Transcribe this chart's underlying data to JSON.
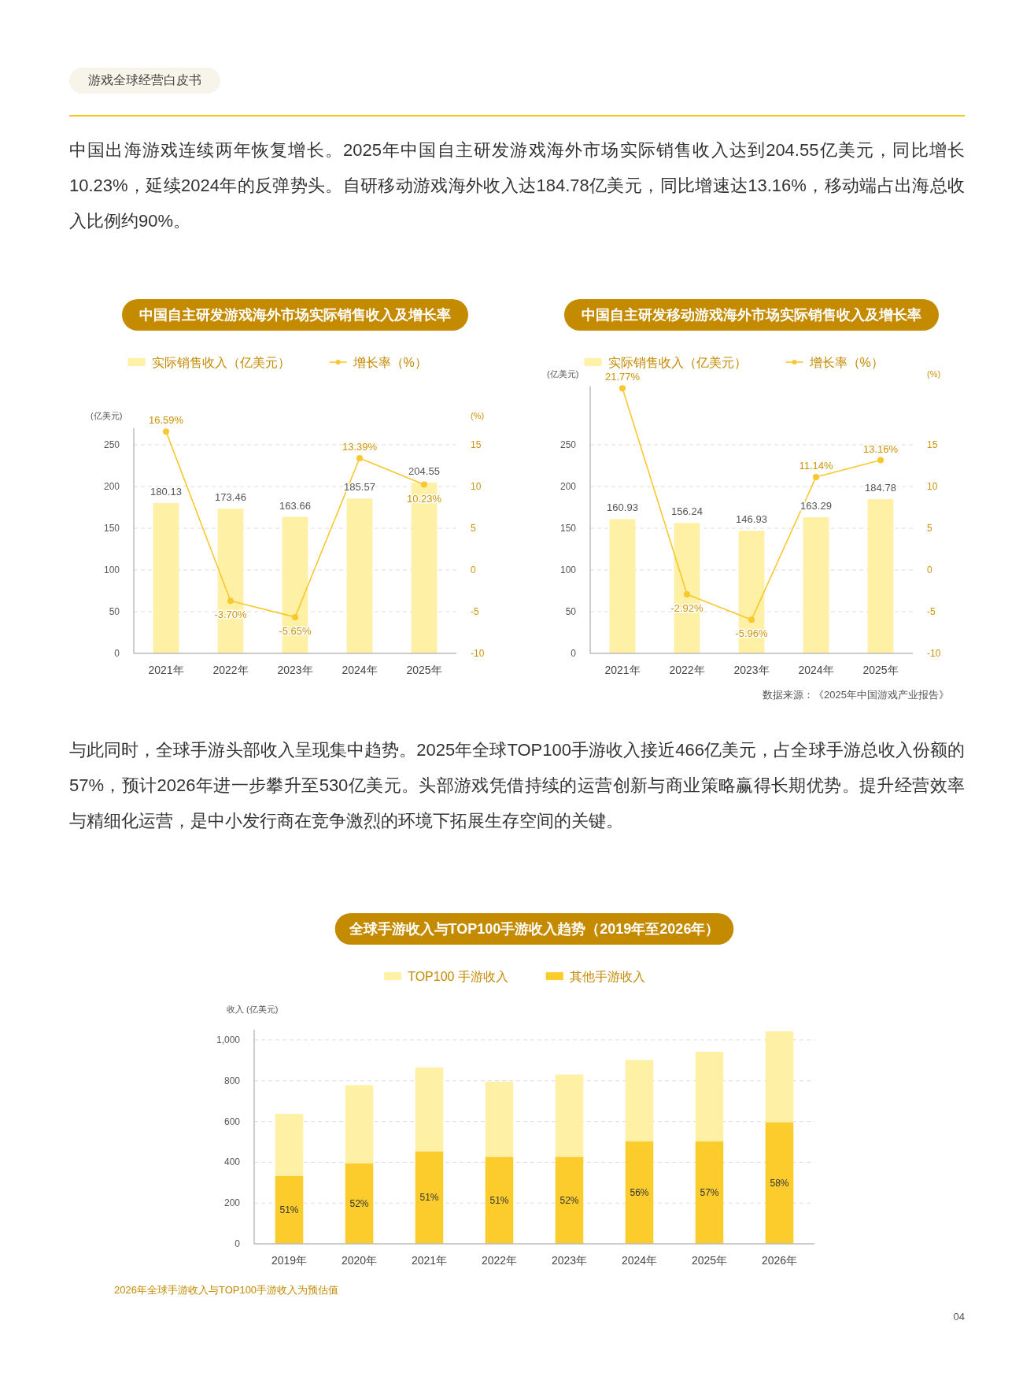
{
  "chart_data": [
    {
      "type": "bar",
      "title": "中国自主研发游戏海外市场实际销售收入及增长率",
      "categories": [
        "2021年",
        "2022年",
        "2023年",
        "2024年",
        "2025年"
      ],
      "series": [
        {
          "name": "实际销售收入（亿美元）",
          "color": "#fef0a5",
          "values": [
            180.13,
            173.46,
            163.66,
            185.57,
            204.55
          ],
          "value_labels": [
            "180.13",
            "173.46",
            "163.66",
            "185.57",
            "204.55"
          ]
        },
        {
          "type": "line",
          "name": "增长率（%）",
          "color": "#f9c72e",
          "axis": "y2",
          "values": [
            16.59,
            -3.7,
            -5.65,
            13.39,
            10.23
          ],
          "value_labels": [
            "16.59%",
            "-3.70%",
            "-5.65%",
            "13.39%",
            "10.23%"
          ]
        }
      ],
      "ylabel": "(亿美元)",
      "y2label": "(%)",
      "ylim": [
        0,
        270
      ],
      "yticks": [
        0,
        50,
        100,
        150,
        200,
        250
      ],
      "y2lim": [
        -10,
        17
      ],
      "y2ticks": [
        -10,
        -5,
        0,
        5,
        10,
        15
      ],
      "grid": "y",
      "legend": "top",
      "marker": "circle",
      "annotations": [
        "游戏全球经营白皮书",
        "中国出海游戏连续两年恢复增长。2025年中国自主研发游戏海外市场实际销售收入达到204.55亿美元，同比增长10.23%，延续2024年的反弹势头。自研移动游戏海外收入达184.78亿美元，同比增速达13.16%，移动端占出海总收入比例约90%。"
      ]
    },
    {
      "type": "bar",
      "title": "中国自主研发移动游戏海外市场实际销售收入及增长率",
      "categories": [
        "2021年",
        "2022年",
        "2023年",
        "2024年",
        "2025年"
      ],
      "series": [
        {
          "name": "实际销售收入（亿美元）",
          "color": "#fef0a5",
          "values": [
            160.93,
            156.24,
            146.93,
            163.29,
            184.78
          ],
          "value_labels": [
            "160.93",
            "156.24",
            "146.93",
            "163.29",
            "184.78"
          ]
        },
        {
          "type": "line",
          "name": "增长率（%）",
          "color": "#f9c72e",
          "axis": "y2",
          "values": [
            21.77,
            -2.92,
            -5.96,
            11.14,
            13.16
          ],
          "value_labels": [
            "21.77%",
            "-2.92%",
            "-5.96%",
            "11.14%",
            "13.16%"
          ]
        }
      ],
      "ylabel": "(亿美元)",
      "y2label": "(%)",
      "ylim": [
        0,
        320
      ],
      "yticks": [
        0,
        50,
        100,
        150,
        200,
        250
      ],
      "y2lim": [
        -10,
        22
      ],
      "y2ticks": [
        -10,
        -5,
        0,
        5,
        10,
        15
      ],
      "grid": "y",
      "legend": "top",
      "marker": "circle",
      "annotations": [
        "数据来源：《2025年中国游戏产业报告》"
      ]
    },
    {
      "type": "bar",
      "title": "全球手游收入与TOP100手游收入趋势（2019年至2026年）",
      "categories": [
        "2019年",
        "2020年",
        "2021年",
        "2022年",
        "2023年",
        "2024年",
        "2025年",
        "2026年"
      ],
      "stacked": true,
      "series": [
        {
          "name": "其他手游收入",
          "color": "#fccc2c",
          "values": [
            332,
            396,
            454,
            427,
            427,
            502,
            502,
            597
          ]
        },
        {
          "name": "TOP100 手游收入",
          "color": "#fef0a5",
          "values": [
            305,
            382,
            411,
            368,
            403,
            400,
            440,
            445
          ]
        }
      ],
      "ylabel": "收入 (亿美元)",
      "ylim": [
        0,
        1050
      ],
      "yticks": [
        0,
        200,
        400,
        600,
        800,
        {
          "value": 1000,
          "label": "1,000"
        }
      ],
      "grid": "y",
      "legend": "top",
      "annotations": [
        "51%",
        "52%",
        "51%",
        "51%",
        "52%",
        "56%",
        "57%",
        "58%",
        "与此同时，全球手游头部收入呈现集中趋势。2025年全球TOP100手游收入接近466亿美元，占全球手游总收入份额的57%，预计2026年进一步攀升至530亿美元。头部游戏凭借持续的运营创新与商业策略赢得长期优势。提升经营效率与精细化运营，是中小发行商在竞争激烈的环境下拓展生存空间的关键。",
        "2026年全球手游收入与TOP100手游收入为预估值",
        "04"
      ]
    }
  ]
}
